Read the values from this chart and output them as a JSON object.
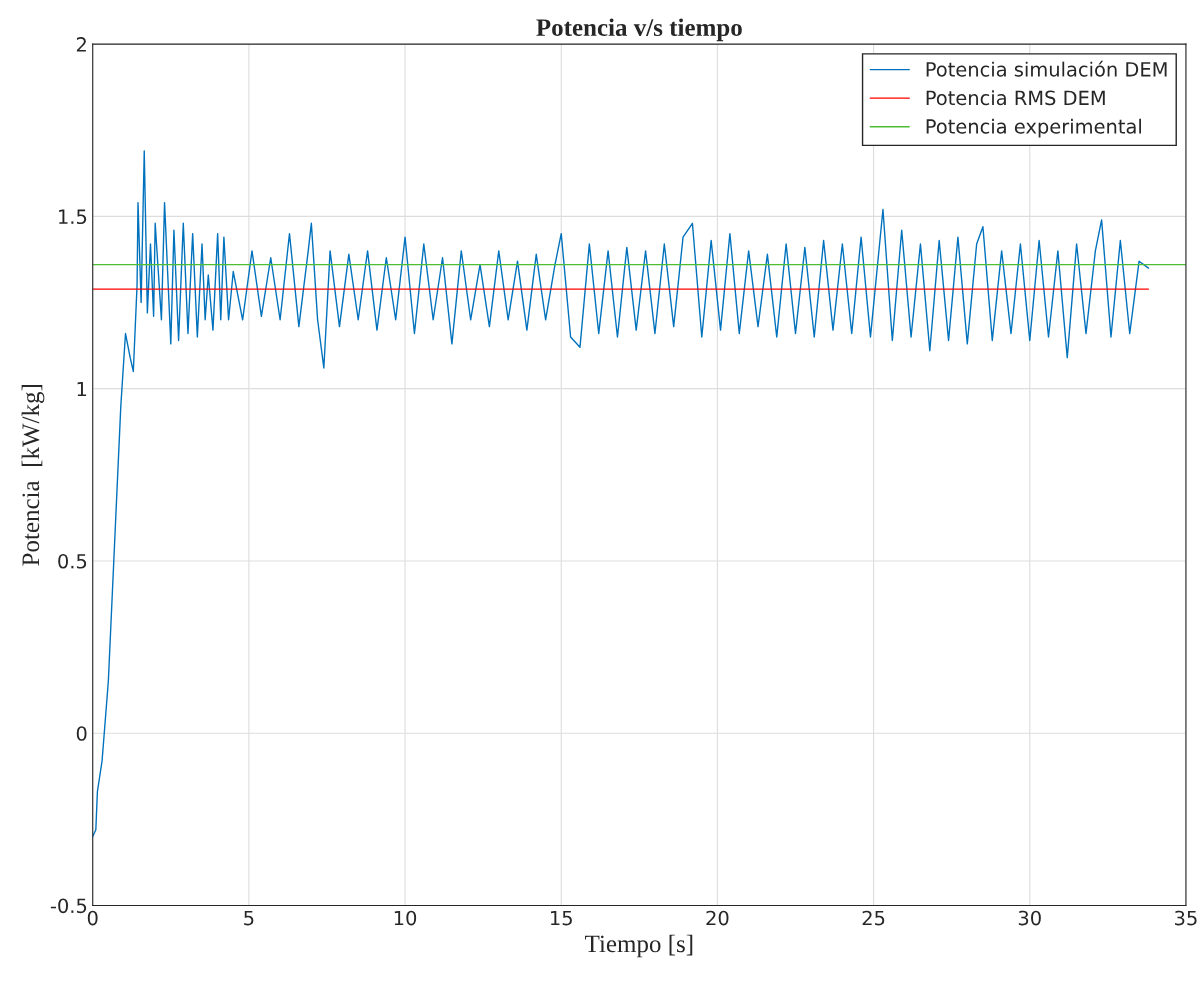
{
  "chart_data": {
    "type": "line",
    "title": "Potencia v/s tiempo",
    "xlabel": "Tiempo [s]",
    "ylabel": "Potencia  [kW/kg]",
    "xlim": [
      0,
      35
    ],
    "ylim": [
      -0.5,
      2
    ],
    "xticks": [
      0,
      5,
      10,
      15,
      20,
      25,
      30,
      35
    ],
    "yticks": [
      -0.5,
      0,
      0.5,
      1,
      1.5,
      2
    ],
    "grid": true,
    "legend": "top right",
    "series": [
      {
        "name": "Potencia simulación DEM",
        "color": "#0072bd",
        "x": [
          0,
          0.1,
          0.15,
          0.3,
          0.5,
          0.7,
          0.9,
          1.05,
          1.2,
          1.3,
          1.42,
          1.45,
          1.55,
          1.65,
          1.75,
          1.85,
          1.95,
          2.0,
          2.2,
          2.3,
          2.5,
          2.6,
          2.75,
          2.9,
          3.05,
          3.2,
          3.35,
          3.5,
          3.6,
          3.7,
          3.85,
          4.0,
          4.1,
          4.2,
          4.35,
          4.5,
          4.8,
          5.1,
          5.4,
          5.7,
          6.0,
          6.3,
          6.6,
          6.9,
          7.0,
          7.2,
          7.4,
          7.6,
          7.9,
          8.2,
          8.5,
          8.8,
          9.1,
          9.4,
          9.7,
          10.0,
          10.3,
          10.6,
          10.9,
          11.2,
          11.5,
          11.8,
          12.1,
          12.4,
          12.7,
          13.0,
          13.3,
          13.6,
          13.9,
          14.2,
          14.5,
          14.8,
          15.0,
          15.3,
          15.6,
          15.9,
          16.2,
          16.5,
          16.8,
          17.1,
          17.4,
          17.7,
          18.0,
          18.3,
          18.6,
          18.9,
          19.2,
          19.5,
          19.8,
          20.1,
          20.4,
          20.7,
          21.0,
          21.3,
          21.6,
          21.9,
          22.2,
          22.5,
          22.8,
          23.1,
          23.4,
          23.7,
          24.0,
          24.3,
          24.6,
          24.9,
          25.3,
          25.6,
          25.9,
          26.2,
          26.5,
          26.8,
          27.1,
          27.4,
          27.7,
          28.0,
          28.3,
          28.5,
          28.8,
          29.1,
          29.4,
          29.7,
          30.0,
          30.3,
          30.6,
          30.9,
          31.2,
          31.5,
          31.8,
          32.1,
          32.3,
          32.6,
          32.9,
          33.2,
          33.5,
          33.8
        ],
        "values": [
          -0.3,
          -0.28,
          -0.17,
          -0.08,
          0.15,
          0.55,
          0.95,
          1.16,
          1.09,
          1.05,
          1.3,
          1.54,
          1.25,
          1.69,
          1.22,
          1.42,
          1.21,
          1.48,
          1.2,
          1.54,
          1.13,
          1.46,
          1.14,
          1.48,
          1.16,
          1.45,
          1.15,
          1.42,
          1.2,
          1.33,
          1.17,
          1.45,
          1.2,
          1.44,
          1.2,
          1.34,
          1.2,
          1.4,
          1.21,
          1.38,
          1.2,
          1.45,
          1.18,
          1.4,
          1.48,
          1.2,
          1.06,
          1.4,
          1.18,
          1.39,
          1.2,
          1.4,
          1.17,
          1.38,
          1.2,
          1.44,
          1.16,
          1.42,
          1.2,
          1.38,
          1.13,
          1.4,
          1.2,
          1.36,
          1.18,
          1.4,
          1.2,
          1.37,
          1.17,
          1.39,
          1.2,
          1.36,
          1.45,
          1.15,
          1.12,
          1.42,
          1.16,
          1.4,
          1.15,
          1.41,
          1.17,
          1.4,
          1.16,
          1.42,
          1.18,
          1.44,
          1.48,
          1.15,
          1.43,
          1.17,
          1.45,
          1.16,
          1.4,
          1.18,
          1.39,
          1.15,
          1.42,
          1.16,
          1.41,
          1.15,
          1.43,
          1.17,
          1.42,
          1.16,
          1.44,
          1.15,
          1.52,
          1.14,
          1.46,
          1.15,
          1.42,
          1.11,
          1.43,
          1.14,
          1.44,
          1.13,
          1.42,
          1.47,
          1.14,
          1.4,
          1.16,
          1.42,
          1.14,
          1.43,
          1.15,
          1.4,
          1.09,
          1.42,
          1.16,
          1.4,
          1.49,
          1.15,
          1.43,
          1.16,
          1.37,
          1.35
        ]
      },
      {
        "name": "Potencia RMS DEM",
        "color": "#ff0000",
        "x": [
          0,
          33.8
        ],
        "values": [
          1.289,
          1.289
        ]
      },
      {
        "name": "Potencia experimental",
        "color": "#4dbd33",
        "x": [
          0,
          35
        ],
        "values": [
          1.36,
          1.36
        ]
      }
    ]
  }
}
